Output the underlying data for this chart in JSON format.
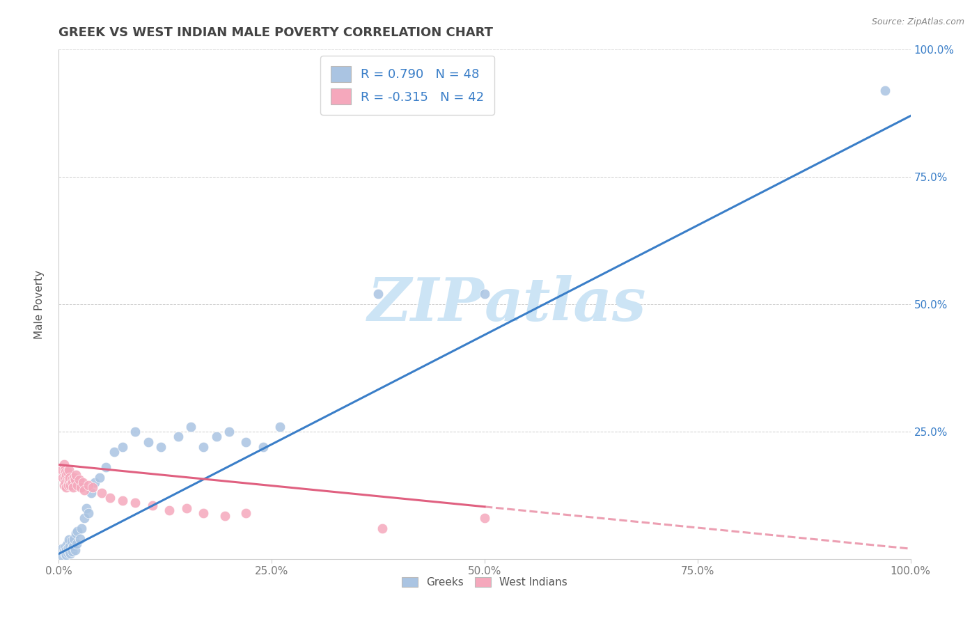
{
  "title": "GREEK VS WEST INDIAN MALE POVERTY CORRELATION CHART",
  "source": "Source: ZipAtlas.com",
  "ylabel": "Male Poverty",
  "xlim": [
    0.0,
    1.0
  ],
  "ylim": [
    0.0,
    1.0
  ],
  "xtick_labels": [
    "0.0%",
    "25.0%",
    "50.0%",
    "75.0%",
    "100.0%"
  ],
  "xtick_vals": [
    0.0,
    0.25,
    0.5,
    0.75,
    1.0
  ],
  "ytick_labels": [
    "25.0%",
    "50.0%",
    "75.0%",
    "100.0%"
  ],
  "ytick_vals": [
    0.25,
    0.5,
    0.75,
    1.0
  ],
  "greek_R": "0.790",
  "greek_N": 48,
  "westindian_R": "-0.315",
  "westindian_N": 42,
  "greek_color": "#aac4e2",
  "westindian_color": "#f5a8bc",
  "greek_line_color": "#3a7ec8",
  "westindian_line_color": "#e06080",
  "legend_text_color": "#3a7ec8",
  "watermark_color": "#cce4f5",
  "background_color": "#ffffff",
  "title_color": "#444444",
  "title_fontsize": 13,
  "greek_line_x0": 0.0,
  "greek_line_y0": 0.01,
  "greek_line_x1": 1.0,
  "greek_line_y1": 0.87,
  "wi_line_x0": 0.0,
  "wi_line_y0": 0.185,
  "wi_line_x1": 1.0,
  "wi_line_y1": 0.02,
  "greek_x": [
    0.004,
    0.005,
    0.006,
    0.007,
    0.008,
    0.009,
    0.009,
    0.01,
    0.01,
    0.011,
    0.012,
    0.012,
    0.013,
    0.014,
    0.015,
    0.015,
    0.016,
    0.017,
    0.018,
    0.019,
    0.02,
    0.021,
    0.022,
    0.025,
    0.027,
    0.03,
    0.032,
    0.035,
    0.038,
    0.042,
    0.048,
    0.055,
    0.065,
    0.075,
    0.09,
    0.105,
    0.12,
    0.14,
    0.155,
    0.17,
    0.185,
    0.2,
    0.22,
    0.24,
    0.26,
    0.375,
    0.5,
    0.97
  ],
  "greek_y": [
    0.02,
    0.005,
    0.015,
    0.01,
    0.025,
    0.008,
    0.018,
    0.012,
    0.03,
    0.022,
    0.015,
    0.038,
    0.025,
    0.01,
    0.02,
    0.035,
    0.015,
    0.025,
    0.04,
    0.018,
    0.05,
    0.03,
    0.055,
    0.04,
    0.06,
    0.08,
    0.1,
    0.09,
    0.13,
    0.15,
    0.16,
    0.18,
    0.21,
    0.22,
    0.25,
    0.23,
    0.22,
    0.24,
    0.26,
    0.22,
    0.24,
    0.25,
    0.23,
    0.22,
    0.26,
    0.52,
    0.52,
    0.92
  ],
  "westindian_x": [
    0.004,
    0.005,
    0.006,
    0.006,
    0.007,
    0.007,
    0.008,
    0.008,
    0.009,
    0.009,
    0.01,
    0.01,
    0.011,
    0.012,
    0.012,
    0.013,
    0.014,
    0.015,
    0.016,
    0.017,
    0.018,
    0.019,
    0.02,
    0.022,
    0.024,
    0.026,
    0.028,
    0.03,
    0.035,
    0.04,
    0.05,
    0.06,
    0.075,
    0.09,
    0.11,
    0.13,
    0.15,
    0.17,
    0.195,
    0.22,
    0.38,
    0.5
  ],
  "westindian_y": [
    0.175,
    0.16,
    0.145,
    0.185,
    0.16,
    0.175,
    0.15,
    0.17,
    0.14,
    0.165,
    0.155,
    0.17,
    0.145,
    0.155,
    0.175,
    0.16,
    0.145,
    0.155,
    0.15,
    0.14,
    0.16,
    0.155,
    0.165,
    0.145,
    0.155,
    0.14,
    0.15,
    0.135,
    0.145,
    0.14,
    0.13,
    0.12,
    0.115,
    0.11,
    0.105,
    0.095,
    0.1,
    0.09,
    0.085,
    0.09,
    0.06,
    0.08
  ]
}
